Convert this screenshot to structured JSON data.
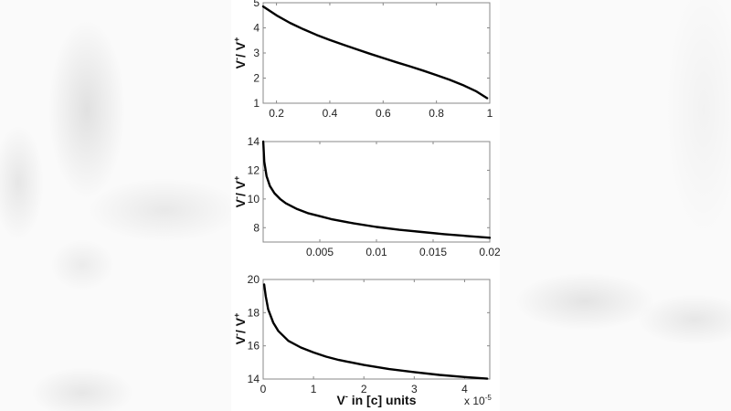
{
  "figure": {
    "background_color": "#fafafa",
    "panel_color": "#ffffff",
    "line_color": "#000000",
    "axis_color": "#888888"
  },
  "chart_data": [
    {
      "type": "line",
      "title": "",
      "xlabel": "",
      "ylabel": "V⁻/ V⁺",
      "xlim": [
        0.15,
        1
      ],
      "ylim": [
        1,
        5
      ],
      "xticks": [
        0.2,
        0.4,
        0.6,
        0.8,
        1
      ],
      "xtick_labels": [
        "0.2",
        "0.4",
        "0.6",
        "0.8",
        "1"
      ],
      "yticks": [
        1,
        2,
        3,
        4,
        5
      ],
      "ytick_labels": [
        "1",
        "2",
        "3",
        "4",
        "5"
      ],
      "grid": false,
      "series": [
        {
          "name": "V-/V+",
          "x": [
            0.15,
            0.2,
            0.25,
            0.3,
            0.35,
            0.4,
            0.45,
            0.5,
            0.55,
            0.6,
            0.65,
            0.7,
            0.75,
            0.8,
            0.85,
            0.9,
            0.95,
            0.99
          ],
          "y": [
            4.85,
            4.5,
            4.2,
            3.95,
            3.72,
            3.52,
            3.33,
            3.15,
            2.97,
            2.8,
            2.63,
            2.47,
            2.3,
            2.12,
            1.93,
            1.72,
            1.47,
            1.2
          ]
        }
      ]
    },
    {
      "type": "line",
      "title": "",
      "xlabel": "",
      "ylabel": "V⁻/ V⁺",
      "xlim": [
        0,
        0.02
      ],
      "ylim": [
        7,
        14
      ],
      "xticks": [
        0.005,
        0.01,
        0.015,
        0.02
      ],
      "xtick_labels": [
        "0.005",
        "0.01",
        "0.015",
        "0.02"
      ],
      "yticks": [
        8,
        10,
        12,
        14
      ],
      "ytick_labels": [
        "8",
        "10",
        "12",
        "14"
      ],
      "grid": false,
      "series": [
        {
          "name": "V-/V+",
          "x": [
            1e-05,
            0.0001,
            0.0003,
            0.0006,
            0.001,
            0.0015,
            0.002,
            0.003,
            0.004,
            0.005,
            0.006,
            0.008,
            0.01,
            0.012,
            0.014,
            0.016,
            0.018,
            0.02
          ],
          "y": [
            14.0,
            12.6,
            11.6,
            10.9,
            10.4,
            10.0,
            9.7,
            9.3,
            9.0,
            8.8,
            8.6,
            8.3,
            8.05,
            7.85,
            7.7,
            7.55,
            7.42,
            7.3
          ]
        }
      ]
    },
    {
      "type": "line",
      "title": "",
      "xlabel": "V⁻ in [c] units",
      "ylabel": "V⁻/ V⁺",
      "x_multiplier_label": "x 10",
      "x_multiplier_exp": "-5",
      "xlim": [
        0,
        4.5
      ],
      "ylim": [
        14,
        20
      ],
      "xticks": [
        0,
        1,
        2,
        3,
        4
      ],
      "xtick_labels": [
        "0",
        "1",
        "2",
        "3",
        "4"
      ],
      "yticks": [
        14,
        16,
        18,
        20
      ],
      "ytick_labels": [
        "14",
        "16",
        "18",
        "20"
      ],
      "grid": false,
      "series": [
        {
          "name": "V-/V+",
          "x": [
            0.02,
            0.05,
            0.1,
            0.2,
            0.3,
            0.5,
            0.75,
            1.0,
            1.25,
            1.5,
            2.0,
            2.5,
            3.0,
            3.5,
            4.0,
            4.45
          ],
          "y": [
            19.7,
            19.0,
            18.2,
            17.4,
            16.9,
            16.3,
            15.9,
            15.6,
            15.35,
            15.15,
            14.85,
            14.6,
            14.42,
            14.25,
            14.12,
            14.02
          ]
        }
      ]
    }
  ],
  "plots": [
    {
      "ylabel_main": "V",
      "ylabel_sup1": "-",
      "ylabel_mid": "/ V",
      "ylabel_sup2": "+"
    },
    {
      "ylabel_main": "V",
      "ylabel_sup1": "-",
      "ylabel_mid": "/ V",
      "ylabel_sup2": "+"
    },
    {
      "ylabel_main": "V",
      "ylabel_sup1": "-",
      "ylabel_mid": "/ V",
      "ylabel_sup2": "+",
      "xlabel_main": "V",
      "xlabel_sup": "-",
      "xlabel_rest": " in [c] units",
      "mult_base": "x 10",
      "mult_exp": "-5"
    }
  ]
}
